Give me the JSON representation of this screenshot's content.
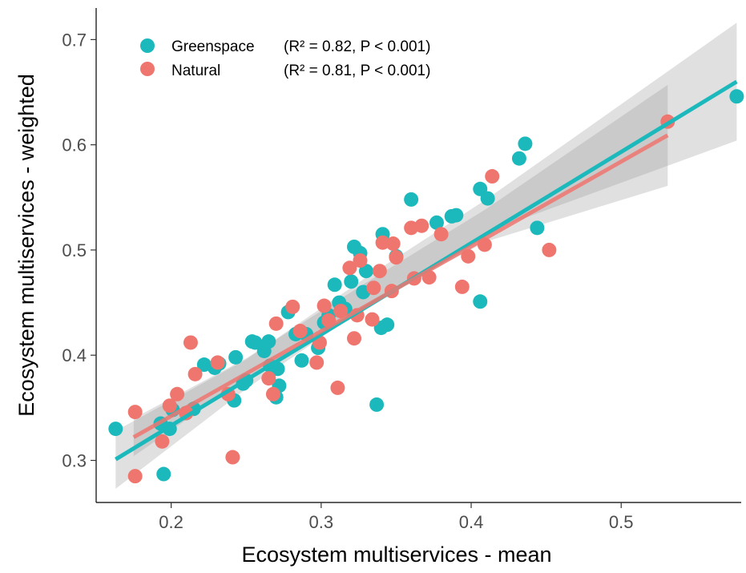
{
  "chart_data": {
    "type": "scatter",
    "xlabel": "Ecosystem multiservices - mean",
    "ylabel": "Ecosystem multiservices - weighted",
    "xlim": [
      0.15,
      0.58
    ],
    "ylim": [
      0.26,
      0.73
    ],
    "xticks": [
      0.2,
      0.3,
      0.4,
      0.5
    ],
    "xtick_labels": [
      "0.2",
      "0.3",
      "0.4",
      "0.5"
    ],
    "yticks": [
      0.3,
      0.4,
      0.5,
      0.6,
      0.7
    ],
    "ytick_labels": [
      "0.3",
      "0.4",
      "0.5",
      "0.6",
      "0.7"
    ],
    "grid": false,
    "legend_position": "top-left",
    "series": [
      {
        "name": "Greenspace",
        "stat_text": "(R² = 0.82, P < 0.001)",
        "color": "#1cb9bc",
        "fit": {
          "x": [
            0.163,
            0.577
          ],
          "y": [
            0.301,
            0.66
          ]
        },
        "ci": {
          "x": [
            0.163,
            0.25,
            0.33,
            0.41,
            0.577
          ],
          "lower": [
            0.273,
            0.368,
            0.446,
            0.517,
            0.604
          ],
          "upper": [
            0.328,
            0.396,
            0.474,
            0.548,
            0.716
          ]
        },
        "points": [
          [
            0.163,
            0.33
          ],
          [
            0.193,
            0.335
          ],
          [
            0.195,
            0.287
          ],
          [
            0.199,
            0.33
          ],
          [
            0.201,
            0.348
          ],
          [
            0.21,
            0.345
          ],
          [
            0.215,
            0.349
          ],
          [
            0.222,
            0.391
          ],
          [
            0.229,
            0.388
          ],
          [
            0.232,
            0.392
          ],
          [
            0.242,
            0.357
          ],
          [
            0.243,
            0.398
          ],
          [
            0.248,
            0.373
          ],
          [
            0.25,
            0.376
          ],
          [
            0.254,
            0.413
          ],
          [
            0.256,
            0.412
          ],
          [
            0.262,
            0.404
          ],
          [
            0.265,
            0.413
          ],
          [
            0.266,
            0.39
          ],
          [
            0.27,
            0.36
          ],
          [
            0.271,
            0.387
          ],
          [
            0.272,
            0.371
          ],
          [
            0.278,
            0.441
          ],
          [
            0.283,
            0.42
          ],
          [
            0.287,
            0.395
          ],
          [
            0.29,
            0.42
          ],
          [
            0.298,
            0.407
          ],
          [
            0.302,
            0.431
          ],
          [
            0.305,
            0.438
          ],
          [
            0.309,
            0.467
          ],
          [
            0.312,
            0.45
          ],
          [
            0.316,
            0.444
          ],
          [
            0.32,
            0.47
          ],
          [
            0.322,
            0.503
          ],
          [
            0.326,
            0.497
          ],
          [
            0.328,
            0.46
          ],
          [
            0.33,
            0.48
          ],
          [
            0.337,
            0.353
          ],
          [
            0.34,
            0.426
          ],
          [
            0.341,
            0.515
          ],
          [
            0.344,
            0.429
          ],
          [
            0.35,
            0.494
          ],
          [
            0.36,
            0.548
          ],
          [
            0.377,
            0.526
          ],
          [
            0.387,
            0.532
          ],
          [
            0.39,
            0.533
          ],
          [
            0.406,
            0.451
          ],
          [
            0.406,
            0.558
          ],
          [
            0.411,
            0.549
          ],
          [
            0.432,
            0.587
          ],
          [
            0.436,
            0.601
          ],
          [
            0.444,
            0.521
          ],
          [
            0.577,
            0.646
          ]
        ]
      },
      {
        "name": "Natural",
        "stat_text": "(R² = 0.81, P < 0.001)",
        "color": "#ef766e",
        "fit": {
          "x": [
            0.175,
            0.531
          ],
          "y": [
            0.322,
            0.609
          ]
        },
        "ci": {
          "x": [
            0.175,
            0.25,
            0.33,
            0.41,
            0.531
          ],
          "lower": [
            0.304,
            0.378,
            0.448,
            0.508,
            0.561
          ],
          "upper": [
            0.34,
            0.397,
            0.469,
            0.539,
            0.657
          ]
        },
        "points": [
          [
            0.176,
            0.346
          ],
          [
            0.176,
            0.285
          ],
          [
            0.194,
            0.318
          ],
          [
            0.199,
            0.352
          ],
          [
            0.204,
            0.363
          ],
          [
            0.21,
            0.345
          ],
          [
            0.213,
            0.412
          ],
          [
            0.216,
            0.382
          ],
          [
            0.231,
            0.393
          ],
          [
            0.238,
            0.363
          ],
          [
            0.241,
            0.303
          ],
          [
            0.265,
            0.378
          ],
          [
            0.268,
            0.363
          ],
          [
            0.27,
            0.43
          ],
          [
            0.281,
            0.446
          ],
          [
            0.286,
            0.423
          ],
          [
            0.297,
            0.393
          ],
          [
            0.299,
            0.412
          ],
          [
            0.302,
            0.447
          ],
          [
            0.305,
            0.433
          ],
          [
            0.311,
            0.369
          ],
          [
            0.313,
            0.442
          ],
          [
            0.319,
            0.483
          ],
          [
            0.322,
            0.416
          ],
          [
            0.324,
            0.438
          ],
          [
            0.326,
            0.49
          ],
          [
            0.334,
            0.434
          ],
          [
            0.335,
            0.464
          ],
          [
            0.339,
            0.48
          ],
          [
            0.341,
            0.507
          ],
          [
            0.347,
            0.461
          ],
          [
            0.348,
            0.506
          ],
          [
            0.35,
            0.493
          ],
          [
            0.36,
            0.521
          ],
          [
            0.362,
            0.473
          ],
          [
            0.367,
            0.523
          ],
          [
            0.372,
            0.474
          ],
          [
            0.38,
            0.515
          ],
          [
            0.394,
            0.465
          ],
          [
            0.398,
            0.494
          ],
          [
            0.409,
            0.505
          ],
          [
            0.414,
            0.57
          ],
          [
            0.452,
            0.5
          ],
          [
            0.531,
            0.622
          ]
        ]
      }
    ]
  }
}
